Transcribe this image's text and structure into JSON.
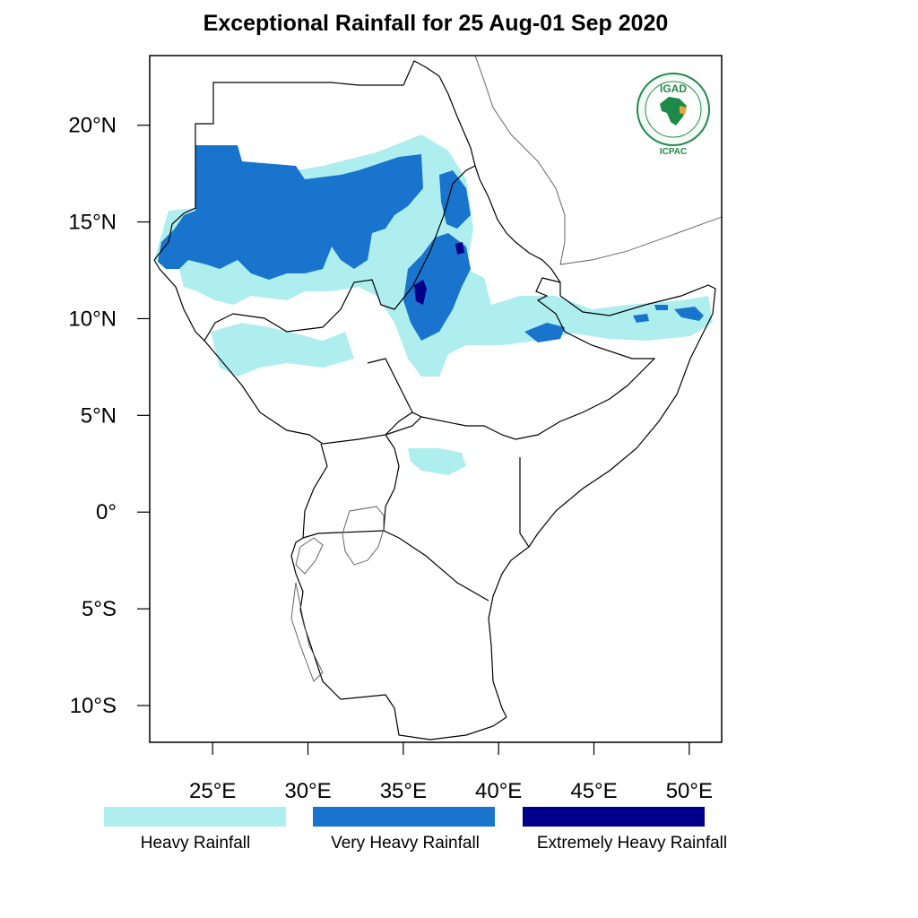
{
  "title": "Exceptional Rainfall for 25 Aug-01 Sep 2020",
  "axes": {
    "lat_ticks": [
      {
        "value": 20,
        "label": "20°N"
      },
      {
        "value": 15,
        "label": "15°N"
      },
      {
        "value": 10,
        "label": "10°N"
      },
      {
        "value": 5,
        "label": "5°N"
      },
      {
        "value": 0,
        "label": "0°"
      },
      {
        "value": -5,
        "label": "5°S"
      },
      {
        "value": -10,
        "label": "10°S"
      }
    ],
    "lon_ticks": [
      {
        "value": 25,
        "label": "25°E"
      },
      {
        "value": 30,
        "label": "30°E"
      },
      {
        "value": 35,
        "label": "35°E"
      },
      {
        "value": 40,
        "label": "40°E"
      },
      {
        "value": 45,
        "label": "45°E"
      },
      {
        "value": 50,
        "label": "50°E"
      }
    ],
    "lon_range": [
      21.7,
      51.7
    ],
    "lat_range": [
      -11.9,
      23.6
    ]
  },
  "legend": [
    {
      "label": "Heavy Rainfall",
      "color": "#afeeee"
    },
    {
      "label": "Very Heavy Rainfall",
      "color": "#1874cd"
    },
    {
      "label": "Extremely Heavy Rainfall",
      "color": "#00008b"
    }
  ],
  "logo": {
    "top_text": "IGAD",
    "bottom_text": "ICPAC",
    "icon": "igad-icpac-logo"
  }
}
